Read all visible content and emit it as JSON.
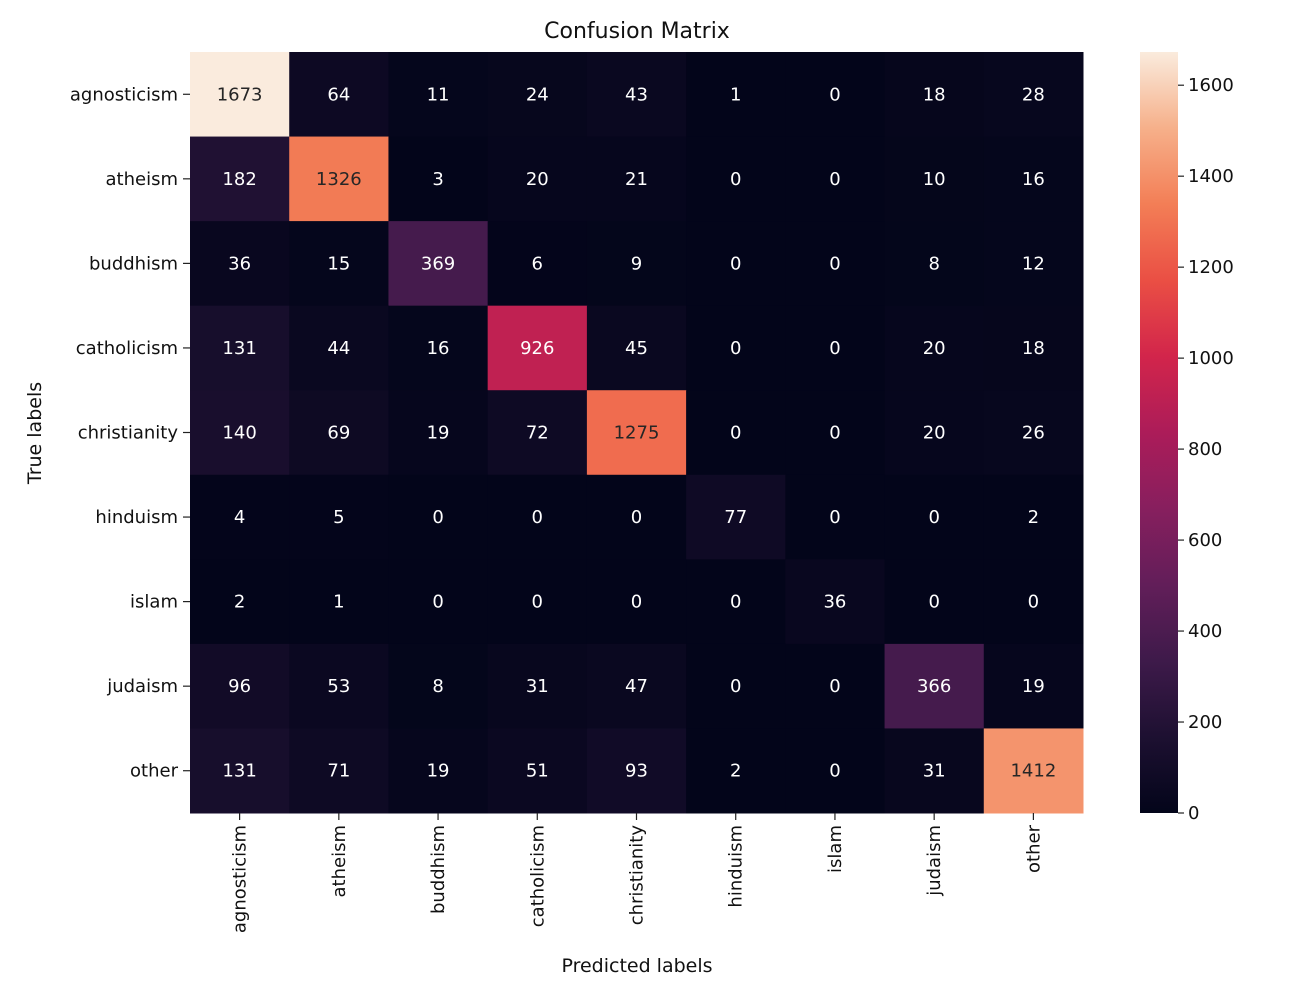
{
  "chart_data": {
    "type": "heatmap",
    "title": "Confusion Matrix",
    "xlabel": "Predicted labels",
    "ylabel": "True labels",
    "x_categories": [
      "agnosticism",
      "atheism",
      "buddhism",
      "catholicism",
      "christianity",
      "hinduism",
      "islam",
      "judaism",
      "other"
    ],
    "y_categories": [
      "agnosticism",
      "atheism",
      "buddhism",
      "catholicism",
      "christianity",
      "hinduism",
      "islam",
      "judaism",
      "other"
    ],
    "values": [
      [
        1673,
        64,
        11,
        24,
        43,
        1,
        0,
        18,
        28
      ],
      [
        182,
        1326,
        3,
        20,
        21,
        0,
        0,
        10,
        16
      ],
      [
        36,
        15,
        369,
        6,
        9,
        0,
        0,
        8,
        12
      ],
      [
        131,
        44,
        16,
        926,
        45,
        0,
        0,
        20,
        18
      ],
      [
        140,
        69,
        19,
        72,
        1275,
        0,
        0,
        20,
        26
      ],
      [
        4,
        5,
        0,
        0,
        0,
        77,
        0,
        0,
        2
      ],
      [
        2,
        1,
        0,
        0,
        0,
        0,
        36,
        0,
        0
      ],
      [
        96,
        53,
        8,
        31,
        47,
        0,
        0,
        366,
        19
      ],
      [
        131,
        71,
        19,
        51,
        93,
        2,
        0,
        31,
        1412
      ]
    ],
    "colorbar": {
      "range": [
        0,
        1673
      ],
      "ticks": [
        0,
        200,
        400,
        600,
        800,
        1000,
        1200,
        1400,
        1600
      ]
    },
    "colormap": "rocket",
    "grid": false
  }
}
